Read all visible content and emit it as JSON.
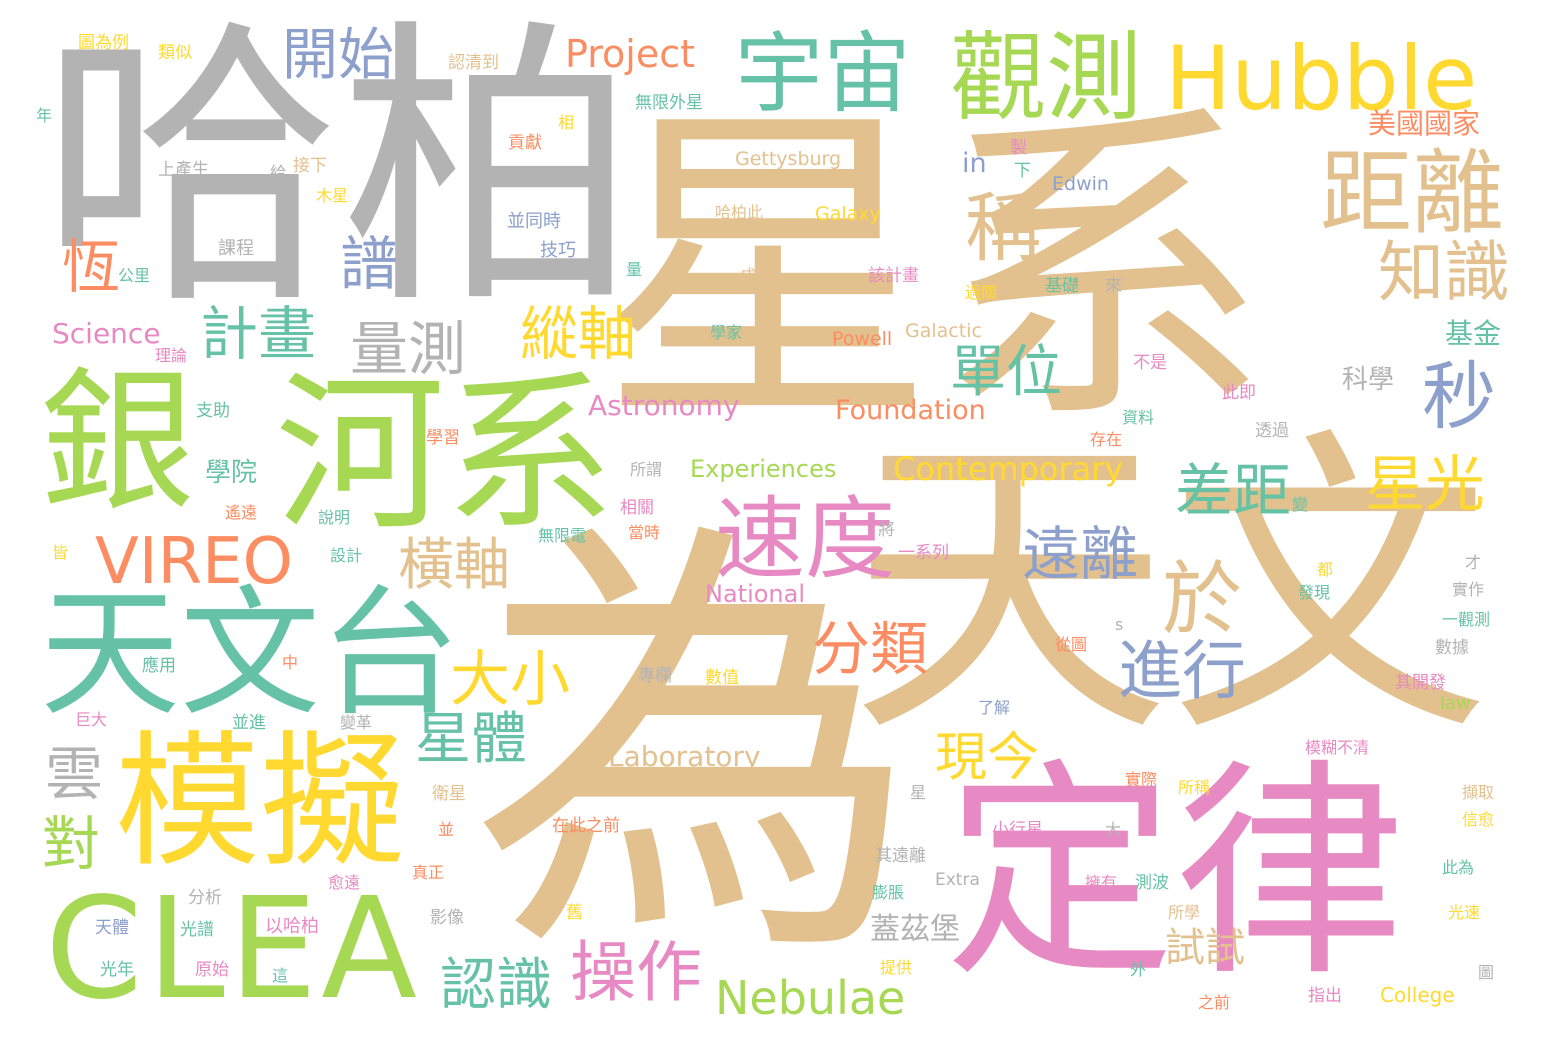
{
  "palette": {
    "tan": "#e3c18f",
    "gray": "#b3b3b3",
    "green": "#a6d854",
    "teal": "#66c2a5",
    "yellow": "#ffd92f",
    "pink": "#e78ac3",
    "orange": "#fc8d62",
    "blue": "#8da0cb"
  },
  "words": [
    {
      "text": "星系",
      "color": "tan"
    },
    {
      "text": "為",
      "color": "tan"
    },
    {
      "text": "天文",
      "color": "tan"
    },
    {
      "text": "哈柏",
      "color": "gray"
    },
    {
      "text": "銀",
      "color": "green"
    },
    {
      "text": "河系",
      "color": "green"
    },
    {
      "text": "天文台",
      "color": "teal"
    },
    {
      "text": "定律",
      "color": "pink"
    },
    {
      "text": "模擬",
      "color": "yellow"
    },
    {
      "text": "CLEA",
      "color": "green"
    },
    {
      "text": "Hubble",
      "color": "yellow"
    },
    {
      "text": "觀測",
      "color": "green"
    },
    {
      "text": "宇宙",
      "color": "teal"
    },
    {
      "text": "距離",
      "color": "tan"
    },
    {
      "text": "速度",
      "color": "pink"
    },
    {
      "text": "開始",
      "color": "blue"
    },
    {
      "text": "Project",
      "color": "orange"
    },
    {
      "text": "稱",
      "color": "tan"
    },
    {
      "text": "知識",
      "color": "tan"
    },
    {
      "text": "秒",
      "color": "blue"
    },
    {
      "text": "譜",
      "color": "blue"
    },
    {
      "text": "恆",
      "color": "orange"
    },
    {
      "text": "計畫",
      "color": "teal"
    },
    {
      "text": "量測",
      "color": "gray"
    },
    {
      "text": "縱軸",
      "color": "yellow"
    },
    {
      "text": "單位",
      "color": "teal"
    },
    {
      "text": "VIREO",
      "color": "orange"
    },
    {
      "text": "橫軸",
      "color": "tan"
    },
    {
      "text": "差距",
      "color": "teal"
    },
    {
      "text": "星光",
      "color": "yellow"
    },
    {
      "text": "遠離",
      "color": "blue"
    },
    {
      "text": "於",
      "color": "tan"
    },
    {
      "text": "分類",
      "color": "orange"
    },
    {
      "text": "進行",
      "color": "blue"
    },
    {
      "text": "大小",
      "color": "yellow"
    },
    {
      "text": "星體",
      "color": "teal"
    },
    {
      "text": "現今",
      "color": "yellow"
    },
    {
      "text": "雲",
      "color": "gray"
    },
    {
      "text": "對",
      "color": "green"
    },
    {
      "text": "操作",
      "color": "pink"
    },
    {
      "text": "Nebulae",
      "color": "green"
    },
    {
      "text": "認識",
      "color": "teal"
    },
    {
      "text": "試試",
      "color": "tan"
    },
    {
      "text": "蓋茲堡",
      "color": "gray"
    },
    {
      "text": "Contemporary",
      "color": "yellow"
    },
    {
      "text": "Astronomy",
      "color": "pink"
    },
    {
      "text": "Foundation",
      "color": "orange"
    },
    {
      "text": "Experiences",
      "color": "green"
    },
    {
      "text": "National",
      "color": "pink"
    },
    {
      "text": "Laboratory",
      "color": "tan"
    },
    {
      "text": "Science",
      "color": "pink"
    },
    {
      "text": "學院",
      "color": "teal"
    },
    {
      "text": "科學",
      "color": "gray"
    },
    {
      "text": "基金",
      "color": "teal"
    },
    {
      "text": "美國國家",
      "color": "orange"
    },
    {
      "text": "Gettysburg",
      "color": "tan"
    },
    {
      "text": "Galaxy",
      "color": "yellow"
    },
    {
      "text": "Edwin",
      "color": "blue"
    },
    {
      "text": "in",
      "color": "blue"
    },
    {
      "text": "Powell",
      "color": "orange"
    },
    {
      "text": "Galactic",
      "color": "tan"
    },
    {
      "text": "Extra",
      "color": "gray"
    },
    {
      "text": "College",
      "color": "yellow"
    },
    {
      "text": "law",
      "color": "green"
    },
    {
      "text": "圖為例",
      "color": "yellow"
    },
    {
      "text": "類似",
      "color": "yellow"
    },
    {
      "text": "認清到",
      "color": "tan"
    },
    {
      "text": "無限外星",
      "color": "teal"
    },
    {
      "text": "年",
      "color": "teal"
    },
    {
      "text": "相",
      "color": "yellow"
    },
    {
      "text": "貢獻",
      "color": "orange"
    },
    {
      "text": "上產生",
      "color": "gray"
    },
    {
      "text": "給",
      "color": "gray"
    },
    {
      "text": "接下",
      "color": "tan"
    },
    {
      "text": "木星",
      "color": "yellow"
    },
    {
      "text": "製",
      "color": "pink"
    },
    {
      "text": "下",
      "color": "teal"
    },
    {
      "text": "課程",
      "color": "gray"
    },
    {
      "text": "並同時",
      "color": "blue"
    },
    {
      "text": "技巧",
      "color": "blue"
    },
    {
      "text": "哈柏此",
      "color": "tan"
    },
    {
      "text": "公里",
      "color": "teal"
    },
    {
      "text": "量",
      "color": "teal"
    },
    {
      "text": "成為",
      "color": "tan"
    },
    {
      "text": "該計畫",
      "color": "pink"
    },
    {
      "text": "基礎",
      "color": "teal"
    },
    {
      "text": "來",
      "color": "gray"
    },
    {
      "text": "過關",
      "color": "yellow"
    },
    {
      "text": "理論",
      "color": "pink"
    },
    {
      "text": "學家",
      "color": "teal"
    },
    {
      "text": "不是",
      "color": "pink"
    },
    {
      "text": "支助",
      "color": "teal"
    },
    {
      "text": "此即",
      "color": "pink"
    },
    {
      "text": "資料",
      "color": "teal"
    },
    {
      "text": "學習",
      "color": "orange"
    },
    {
      "text": "存在",
      "color": "orange"
    },
    {
      "text": "透過",
      "color": "gray"
    },
    {
      "text": "所謂",
      "color": "gray"
    },
    {
      "text": "遙遠",
      "color": "orange"
    },
    {
      "text": "說明",
      "color": "teal"
    },
    {
      "text": "相關",
      "color": "pink"
    },
    {
      "text": "當時",
      "color": "orange"
    },
    {
      "text": "無限電",
      "color": "teal"
    },
    {
      "text": "將",
      "color": "gray"
    },
    {
      "text": "一系列",
      "color": "pink"
    },
    {
      "text": "變",
      "color": "teal"
    },
    {
      "text": "皆",
      "color": "yellow"
    },
    {
      "text": "設計",
      "color": "teal"
    },
    {
      "text": "才",
      "color": "gray"
    },
    {
      "text": "都",
      "color": "yellow"
    },
    {
      "text": "發現",
      "color": "teal"
    },
    {
      "text": "實作",
      "color": "gray"
    },
    {
      "text": "一觀測",
      "color": "teal"
    },
    {
      "text": "s",
      "color": "gray"
    },
    {
      "text": "從圖",
      "color": "orange"
    },
    {
      "text": "應用",
      "color": "teal"
    },
    {
      "text": "中",
      "color": "orange"
    },
    {
      "text": "專欄",
      "color": "gray"
    },
    {
      "text": "數值",
      "color": "yellow"
    },
    {
      "text": "數據",
      "color": "gray"
    },
    {
      "text": "其開發",
      "color": "pink"
    },
    {
      "text": "巨大",
      "color": "pink"
    },
    {
      "text": "並進",
      "color": "teal"
    },
    {
      "text": "變革",
      "color": "gray"
    },
    {
      "text": "了解",
      "color": "blue"
    },
    {
      "text": "模糊不清",
      "color": "pink"
    },
    {
      "text": "實際",
      "color": "orange"
    },
    {
      "text": "所稱",
      "color": "yellow"
    },
    {
      "text": "衛星",
      "color": "tan"
    },
    {
      "text": "星",
      "color": "gray"
    },
    {
      "text": "擷取",
      "color": "tan"
    },
    {
      "text": "在此之前",
      "color": "orange"
    },
    {
      "text": "並",
      "color": "orange"
    },
    {
      "text": "小行星",
      "color": "pink"
    },
    {
      "text": "大",
      "color": "gray"
    },
    {
      "text": "信愈",
      "color": "yellow"
    },
    {
      "text": "真正",
      "color": "orange"
    },
    {
      "text": "愈遠",
      "color": "pink"
    },
    {
      "text": "其遠離",
      "color": "gray"
    },
    {
      "text": "此為",
      "color": "teal"
    },
    {
      "text": "分析",
      "color": "gray"
    },
    {
      "text": "膨脹",
      "color": "teal"
    },
    {
      "text": "擁有",
      "color": "pink"
    },
    {
      "text": "測波",
      "color": "teal"
    },
    {
      "text": "影像",
      "color": "gray"
    },
    {
      "text": "舊",
      "color": "yellow"
    },
    {
      "text": "所學",
      "color": "tan"
    },
    {
      "text": "光速",
      "color": "yellow"
    },
    {
      "text": "天體",
      "color": "blue"
    },
    {
      "text": "光譜",
      "color": "teal"
    },
    {
      "text": "以哈柏",
      "color": "pink"
    },
    {
      "text": "光年",
      "color": "teal"
    },
    {
      "text": "原始",
      "color": "pink"
    },
    {
      "text": "這",
      "color": "teal"
    },
    {
      "text": "提供",
      "color": "yellow"
    },
    {
      "text": "外",
      "color": "teal"
    },
    {
      "text": "圖",
      "color": "gray"
    },
    {
      "text": "指出",
      "color": "pink"
    },
    {
      "text": "之前",
      "color": "orange"
    }
  ]
}
